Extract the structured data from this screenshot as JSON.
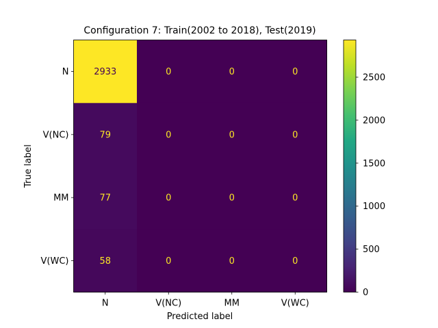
{
  "chart_data": {
    "type": "heatmap",
    "title": "Configuration 7: Train(2002 to 2018), Test(2019)",
    "xlabel": "Predicted label",
    "ylabel": "True label",
    "x_categories": [
      "N",
      "V(NC)",
      "MM",
      "V(WC)"
    ],
    "y_categories": [
      "N",
      "V(NC)",
      "MM",
      "V(WC)"
    ],
    "matrix": [
      [
        2933,
        0,
        0,
        0
      ],
      [
        79,
        0,
        0,
        0
      ],
      [
        77,
        0,
        0,
        0
      ],
      [
        58,
        0,
        0,
        0
      ]
    ],
    "colormap": "viridis",
    "colorbar": {
      "vmin": 0,
      "vmax": 2933,
      "ticks": [
        0,
        500,
        1000,
        1500,
        2000,
        2500
      ]
    },
    "grid": false
  },
  "colors": {
    "low_text": "#fde725",
    "high_text": "#440154"
  }
}
